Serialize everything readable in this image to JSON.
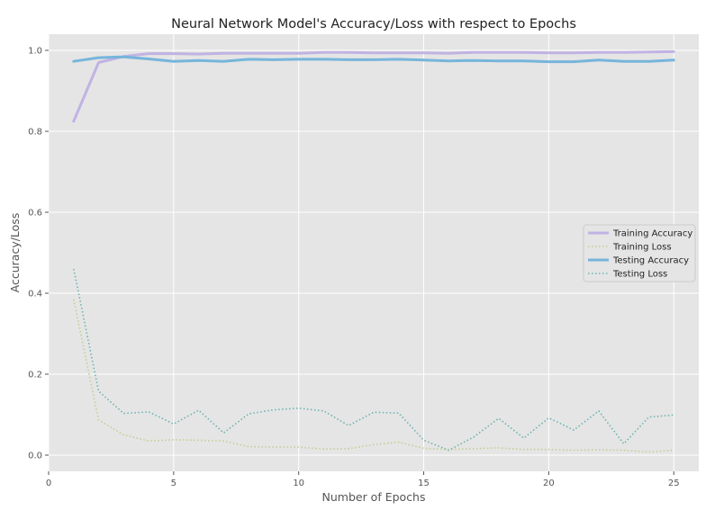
{
  "chart_data": {
    "type": "line",
    "title": "Neural Network Model's Accuracy/Loss with respect to Epochs",
    "xlabel": "Number of Epochs",
    "ylabel": "Accuracy/Loss",
    "xlim": [
      0,
      26
    ],
    "ylim": [
      -0.04,
      1.04
    ],
    "xticks": [
      0,
      5,
      10,
      15,
      20,
      25
    ],
    "yticks": [
      0.0,
      0.2,
      0.4,
      0.6,
      0.8,
      1.0
    ],
    "grid": true,
    "legend_position": "center-right",
    "x": [
      1,
      2,
      3,
      4,
      5,
      6,
      7,
      8,
      9,
      10,
      11,
      12,
      13,
      14,
      15,
      16,
      17,
      18,
      19,
      20,
      21,
      22,
      23,
      24,
      25
    ],
    "series": [
      {
        "name": "Training Accuracy",
        "style": "solid",
        "color": "#c0b3e3",
        "values": [
          0.825,
          0.97,
          0.985,
          0.992,
          0.992,
          0.991,
          0.993,
          0.993,
          0.993,
          0.993,
          0.995,
          0.995,
          0.994,
          0.994,
          0.994,
          0.993,
          0.995,
          0.995,
          0.995,
          0.994,
          0.994,
          0.995,
          0.995,
          0.996,
          0.997
        ]
      },
      {
        "name": "Training Loss",
        "style": "dotted",
        "color": "#bfcf93",
        "values": [
          0.385,
          0.087,
          0.05,
          0.035,
          0.038,
          0.037,
          0.035,
          0.021,
          0.02,
          0.02,
          0.015,
          0.016,
          0.026,
          0.032,
          0.017,
          0.014,
          0.016,
          0.018,
          0.014,
          0.014,
          0.012,
          0.013,
          0.012,
          0.008,
          0.012
        ]
      },
      {
        "name": "Testing Accuracy",
        "style": "solid",
        "color": "#76b5db",
        "values": [
          0.973,
          0.982,
          0.984,
          0.979,
          0.973,
          0.975,
          0.973,
          0.978,
          0.977,
          0.978,
          0.978,
          0.977,
          0.977,
          0.978,
          0.976,
          0.974,
          0.975,
          0.974,
          0.974,
          0.972,
          0.972,
          0.976,
          0.973,
          0.973,
          0.976
        ]
      },
      {
        "name": "Testing Loss",
        "style": "dotted",
        "color": "#6cb3b0",
        "values": [
          0.46,
          0.158,
          0.103,
          0.107,
          0.077,
          0.111,
          0.055,
          0.102,
          0.112,
          0.116,
          0.109,
          0.073,
          0.106,
          0.104,
          0.037,
          0.012,
          0.045,
          0.091,
          0.042,
          0.092,
          0.062,
          0.109,
          0.028,
          0.094,
          0.099
        ]
      }
    ]
  }
}
